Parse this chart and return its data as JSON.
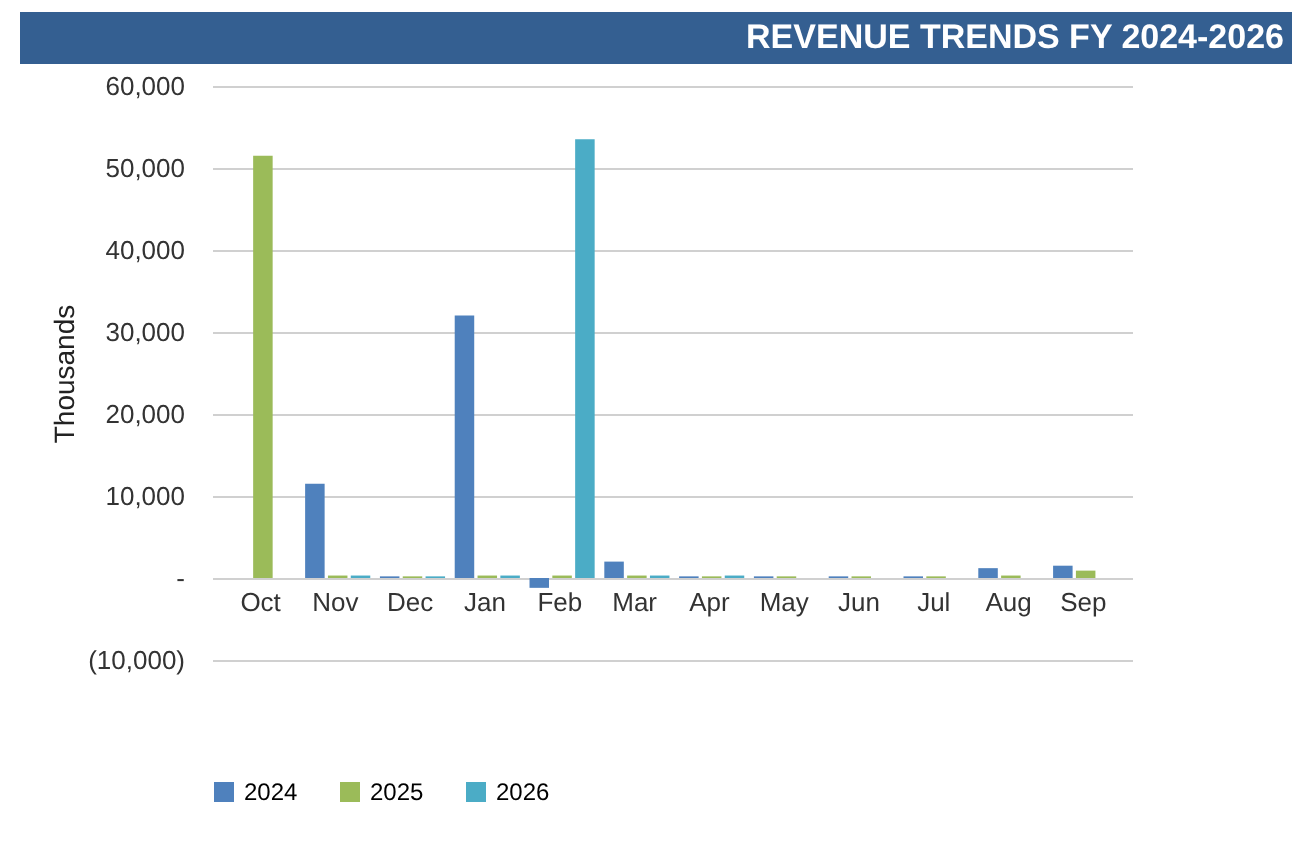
{
  "chart_data": {
    "type": "bar",
    "title": "REVENUE TRENDS FY 2024-2026",
    "ylabel": "Thousands",
    "categories": [
      "Oct",
      "Nov",
      "Dec",
      "Jan",
      "Feb",
      "Mar",
      "Apr",
      "May",
      "Jun",
      "Jul",
      "Aug",
      "Sep"
    ],
    "series": [
      {
        "name": "2024",
        "color": "#4f81bd",
        "values": [
          0,
          11500,
          200,
          32000,
          -1200,
          2000,
          200,
          200,
          200,
          200,
          1200,
          1500
        ]
      },
      {
        "name": "2025",
        "color": "#9bbb59",
        "values": [
          51500,
          300,
          200,
          300,
          300,
          300,
          200,
          200,
          200,
          200,
          300,
          900
        ]
      },
      {
        "name": "2026",
        "color": "#4bacc6",
        "values": [
          0,
          300,
          200,
          300,
          53500,
          300,
          300,
          0,
          0,
          0,
          0,
          0
        ]
      }
    ],
    "ylim": [
      -10000,
      60000
    ],
    "yticks": [
      {
        "value": -10000,
        "label": "(10,000)"
      },
      {
        "value": 0,
        "label": "-"
      },
      {
        "value": 10000,
        "label": "10,000"
      },
      {
        "value": 20000,
        "label": "20,000"
      },
      {
        "value": 30000,
        "label": "30,000"
      },
      {
        "value": 40000,
        "label": "40,000"
      },
      {
        "value": 50000,
        "label": "50,000"
      },
      {
        "value": 60000,
        "label": "60,000"
      }
    ],
    "grid": "y",
    "legend": "bottom"
  }
}
